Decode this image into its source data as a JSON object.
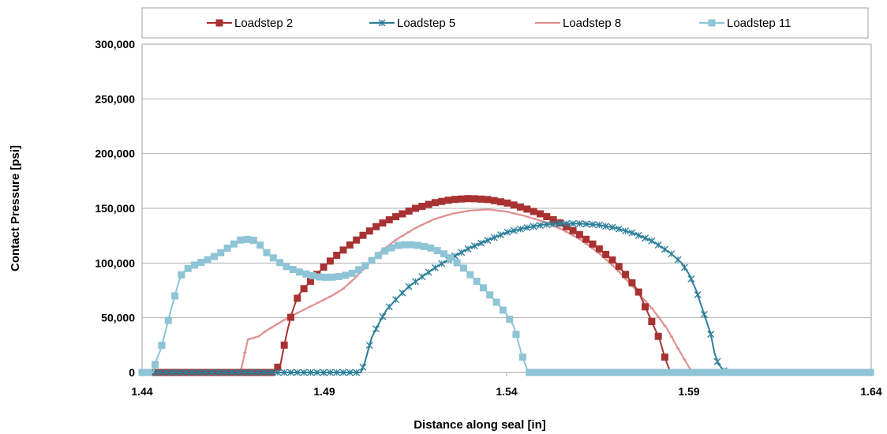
{
  "chart_data": {
    "type": "line",
    "title": "",
    "xlabel": "Distance along seal [in]",
    "ylabel": "Contact Pressure [psi]",
    "xlim": [
      1.44,
      1.64
    ],
    "ylim": [
      0,
      300000
    ],
    "x_ticks": [
      "1.44",
      "1.49",
      "1.54",
      "1.59",
      "1.64"
    ],
    "y_ticks": [
      "0",
      "50,000",
      "100,000",
      "150,000",
      "200,000",
      "250,000",
      "300,000"
    ],
    "grid": "horizontal",
    "legend_position": "top",
    "series": [
      {
        "name": "Loadstep 2",
        "color": "#a83232",
        "marker": "square",
        "points": [
          [
            1.443,
            0
          ],
          [
            1.476,
            0
          ],
          [
            1.478,
            8000
          ],
          [
            1.479,
            25000
          ],
          [
            1.48,
            40000
          ],
          [
            1.481,
            53000
          ],
          [
            1.482,
            63000
          ],
          [
            1.483,
            71000
          ],
          [
            1.485,
            79000
          ],
          [
            1.487,
            86000
          ],
          [
            1.49,
            97000
          ],
          [
            1.493,
            106000
          ],
          [
            1.496,
            114000
          ],
          [
            1.5,
            124000
          ],
          [
            1.505,
            135000
          ],
          [
            1.51,
            143000
          ],
          [
            1.515,
            150000
          ],
          [
            1.52,
            155000
          ],
          [
            1.525,
            158000
          ],
          [
            1.53,
            159000
          ],
          [
            1.535,
            158000
          ],
          [
            1.54,
            155000
          ],
          [
            1.545,
            150000
          ],
          [
            1.55,
            144000
          ],
          [
            1.555,
            136000
          ],
          [
            1.56,
            126000
          ],
          [
            1.565,
            114000
          ],
          [
            1.57,
            100000
          ],
          [
            1.573,
            88000
          ],
          [
            1.576,
            75000
          ],
          [
            1.578,
            60000
          ],
          [
            1.58,
            45000
          ],
          [
            1.582,
            30000
          ],
          [
            1.583,
            18000
          ],
          [
            1.584,
            8000
          ],
          [
            1.585,
            0
          ]
        ]
      },
      {
        "name": "Loadstep 5",
        "color": "#2e7f9a",
        "marker": "x",
        "points": [
          [
            1.443,
            0
          ],
          [
            1.5,
            0
          ],
          [
            1.501,
            8000
          ],
          [
            1.502,
            20000
          ],
          [
            1.503,
            32000
          ],
          [
            1.505,
            45000
          ],
          [
            1.507,
            57000
          ],
          [
            1.51,
            68000
          ],
          [
            1.513,
            78000
          ],
          [
            1.517,
            88000
          ],
          [
            1.521,
            97000
          ],
          [
            1.525,
            105000
          ],
          [
            1.53,
            114000
          ],
          [
            1.535,
            121000
          ],
          [
            1.54,
            128000
          ],
          [
            1.545,
            132000
          ],
          [
            1.55,
            135000
          ],
          [
            1.555,
            136000
          ],
          [
            1.56,
            136000
          ],
          [
            1.565,
            135000
          ],
          [
            1.57,
            132000
          ],
          [
            1.575,
            127000
          ],
          [
            1.58,
            120000
          ],
          [
            1.585,
            109000
          ],
          [
            1.588,
            100000
          ],
          [
            1.59,
            90000
          ],
          [
            1.592,
            75000
          ],
          [
            1.594,
            55000
          ],
          [
            1.596,
            35000
          ],
          [
            1.597,
            18000
          ],
          [
            1.598,
            8000
          ],
          [
            1.6,
            0
          ],
          [
            1.64,
            0
          ]
        ]
      },
      {
        "name": "Loadstep 8",
        "color": "#e09090",
        "marker": "none",
        "points": [
          [
            1.443,
            0
          ],
          [
            1.467,
            0
          ],
          [
            1.468,
            15000
          ],
          [
            1.469,
            30000
          ],
          [
            1.472,
            33000
          ],
          [
            1.474,
            38000
          ],
          [
            1.477,
            44000
          ],
          [
            1.48,
            50000
          ],
          [
            1.483,
            55000
          ],
          [
            1.486,
            60000
          ],
          [
            1.489,
            65000
          ],
          [
            1.492,
            70000
          ],
          [
            1.495,
            76000
          ],
          [
            1.498,
            85000
          ],
          [
            1.5,
            92000
          ],
          [
            1.503,
            102000
          ],
          [
            1.506,
            112000
          ],
          [
            1.51,
            122000
          ],
          [
            1.515,
            132000
          ],
          [
            1.52,
            140000
          ],
          [
            1.525,
            145000
          ],
          [
            1.53,
            148000
          ],
          [
            1.535,
            149000
          ],
          [
            1.54,
            147000
          ],
          [
            1.545,
            143000
          ],
          [
            1.55,
            138000
          ],
          [
            1.555,
            131000
          ],
          [
            1.56,
            122000
          ],
          [
            1.565,
            110000
          ],
          [
            1.57,
            95000
          ],
          [
            1.575,
            77000
          ],
          [
            1.58,
            58000
          ],
          [
            1.584,
            40000
          ],
          [
            1.587,
            22000
          ],
          [
            1.59,
            5000
          ],
          [
            1.591,
            0
          ]
        ]
      },
      {
        "name": "Loadstep 11",
        "color": "#8ec4d6",
        "marker": "square",
        "points": [
          [
            1.44,
            0
          ],
          [
            1.443,
            0
          ],
          [
            1.444,
            12000
          ],
          [
            1.445,
            20000
          ],
          [
            1.446,
            32000
          ],
          [
            1.447,
            45000
          ],
          [
            1.448,
            58000
          ],
          [
            1.449,
            70000
          ],
          [
            1.45,
            82000
          ],
          [
            1.451,
            91000
          ],
          [
            1.453,
            96000
          ],
          [
            1.455,
            99000
          ],
          [
            1.458,
            103000
          ],
          [
            1.461,
            108000
          ],
          [
            1.464,
            115000
          ],
          [
            1.467,
            121000
          ],
          [
            1.47,
            122000
          ],
          [
            1.472,
            118000
          ],
          [
            1.474,
            110000
          ],
          [
            1.477,
            102000
          ],
          [
            1.48,
            96000
          ],
          [
            1.483,
            92000
          ],
          [
            1.486,
            89000
          ],
          [
            1.489,
            87000
          ],
          [
            1.492,
            87000
          ],
          [
            1.495,
            88000
          ],
          [
            1.498,
            91000
          ],
          [
            1.501,
            97000
          ],
          [
            1.504,
            105000
          ],
          [
            1.507,
            112000
          ],
          [
            1.51,
            116000
          ],
          [
            1.513,
            117000
          ],
          [
            1.516,
            116000
          ],
          [
            1.519,
            114000
          ],
          [
            1.522,
            110000
          ],
          [
            1.525,
            104000
          ],
          [
            1.528,
            96000
          ],
          [
            1.531,
            86000
          ],
          [
            1.534,
            76000
          ],
          [
            1.537,
            65000
          ],
          [
            1.54,
            53000
          ],
          [
            1.542,
            42000
          ],
          [
            1.543,
            30000
          ],
          [
            1.544,
            18000
          ],
          [
            1.545,
            8000
          ],
          [
            1.546,
            0
          ],
          [
            1.64,
            0
          ]
        ]
      }
    ]
  }
}
